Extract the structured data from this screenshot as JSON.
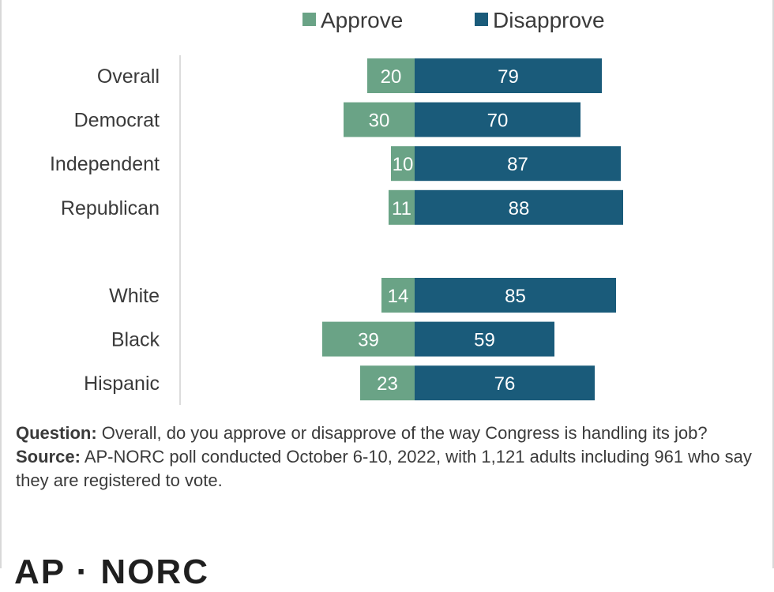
{
  "chart_data": {
    "type": "bar",
    "orientation": "horizontal",
    "stacked": "diverging",
    "categories": [
      "Overall",
      "Democrat",
      "Independent",
      "Republican",
      "",
      "White",
      "Black",
      "Hispanic"
    ],
    "series": [
      {
        "name": "Approve",
        "color": "#6aa386",
        "values": [
          20,
          30,
          10,
          11,
          null,
          14,
          39,
          23
        ]
      },
      {
        "name": "Disapprove",
        "color": "#1a5b7a",
        "values": [
          79,
          70,
          87,
          88,
          null,
          85,
          59,
          76
        ]
      }
    ],
    "legend_position": "top",
    "grid": false
  },
  "notes": {
    "question_label": "Question:",
    "question_text": "Overall, do you approve or disapprove of the way Congress is handling its job?",
    "source_label": "Source:",
    "source_text": "AP-NORC poll conducted October 6-10, 2022, with 1,121 adults including 961 who say they are registered to vote."
  },
  "logo": {
    "text": "AP · NORC"
  }
}
